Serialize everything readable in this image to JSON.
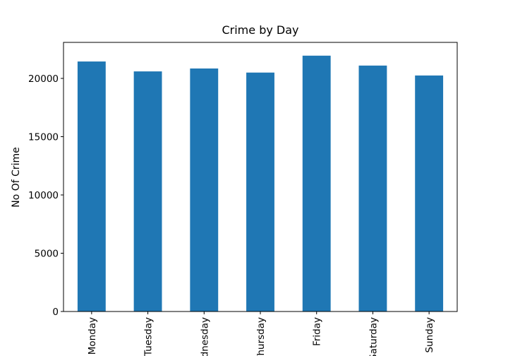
{
  "chart_data": {
    "type": "bar",
    "title": "Crime by Day",
    "y_label": "No Of Crime",
    "categories": [
      "Monday",
      "Tuesday",
      "Wednesday",
      "Thursday",
      "Friday",
      "Saturday",
      "Sunday"
    ],
    "values": [
      21450,
      20600,
      20850,
      20500,
      21950,
      21100,
      20250
    ],
    "color": "#1f77b4",
    "ylim": [
      0,
      23090
    ],
    "yticks": [
      0,
      5000,
      10000,
      15000,
      20000
    ],
    "grid": false
  }
}
